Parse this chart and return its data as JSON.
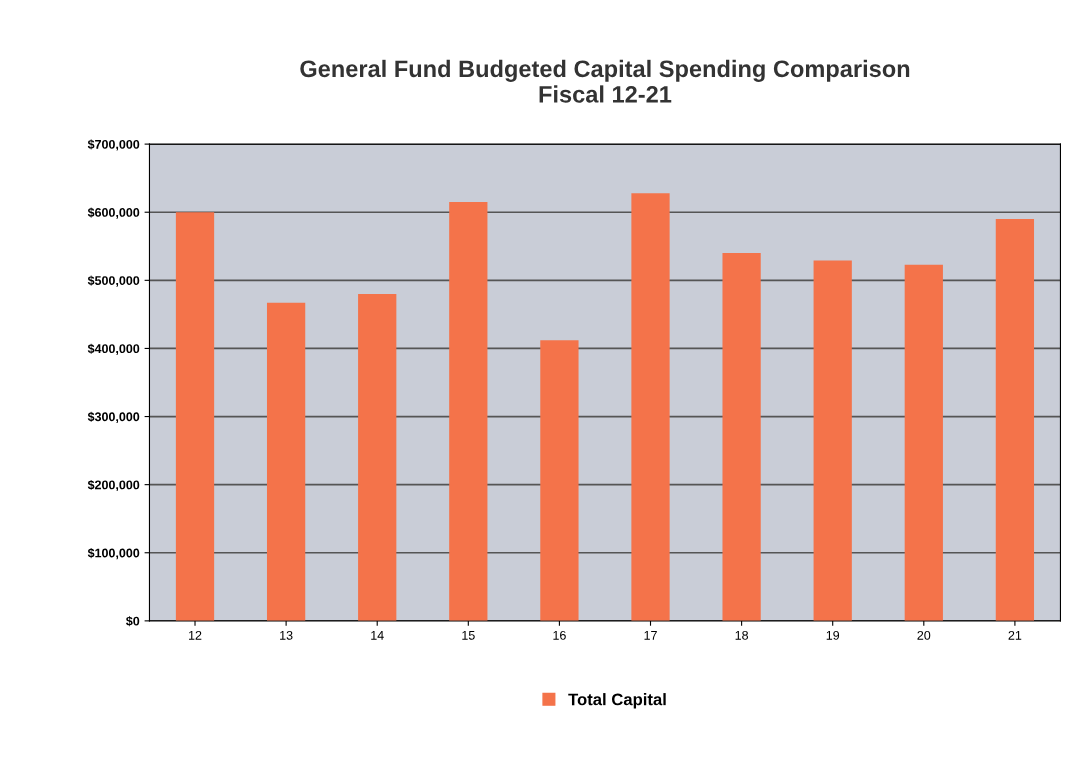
{
  "chart_data": {
    "type": "bar",
    "title": "General Fund Budgeted Capital Spending Comparison\nFiscal 12-21",
    "categories": [
      "12",
      "13",
      "14",
      "15",
      "16",
      "17",
      "18",
      "19",
      "20",
      "21"
    ],
    "series": [
      {
        "name": "Total Capital",
        "color": "#f4734a",
        "values": [
          600000,
          467000,
          480000,
          615000,
          412000,
          628000,
          540000,
          529000,
          523000,
          590000
        ]
      }
    ],
    "ylim": [
      0,
      700000
    ],
    "yticks": [
      {
        "value": 0,
        "label": "$0"
      },
      {
        "value": 100000,
        "label": "$100,000"
      },
      {
        "value": 200000,
        "label": "$200,000"
      },
      {
        "value": 300000,
        "label": "$300,000"
      },
      {
        "value": 400000,
        "label": "$400,000"
      },
      {
        "value": 500000,
        "label": "$500,000"
      },
      {
        "value": 600000,
        "label": "$600,000"
      },
      {
        "value": 700000,
        "label": "$700,000"
      }
    ],
    "grid": "y",
    "legend": "bottom"
  }
}
